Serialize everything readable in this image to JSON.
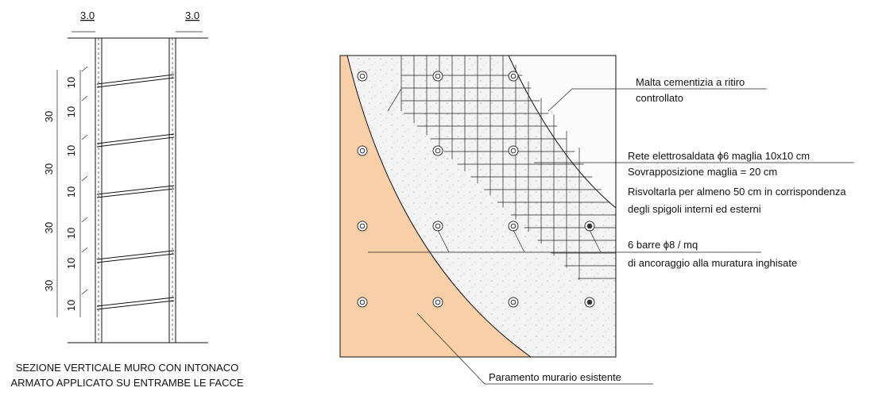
{
  "section": {
    "top_dims": [
      "3.0",
      "3.0"
    ],
    "dims_10": [
      "10",
      "10",
      "10",
      "10",
      "10",
      "10",
      "10"
    ],
    "dims_30": [
      "30",
      "30",
      "30",
      "30"
    ],
    "caption": [
      "SEZIONE VERTICALE MURO CON INTONACO",
      "ARMATO APPLICATO SU ENTRAMBE LE FACCE"
    ]
  },
  "detail": {
    "malta": [
      "Malta cementizia a ritiro",
      "controllato"
    ],
    "rete": [
      "Rete elettrosaldata ϕ6 maglia 10x10 cm",
      "Sovrapposizione maglia = 20 cm",
      "Risvoltarla per almeno 50 cm in corrispondenza",
      "degli spigoli interni ed esterni"
    ],
    "barre": [
      "6 barre ϕ8 / mq",
      "di ancoraggio alla muratura inghisate"
    ],
    "paramento": "Paramento murario esistente"
  }
}
